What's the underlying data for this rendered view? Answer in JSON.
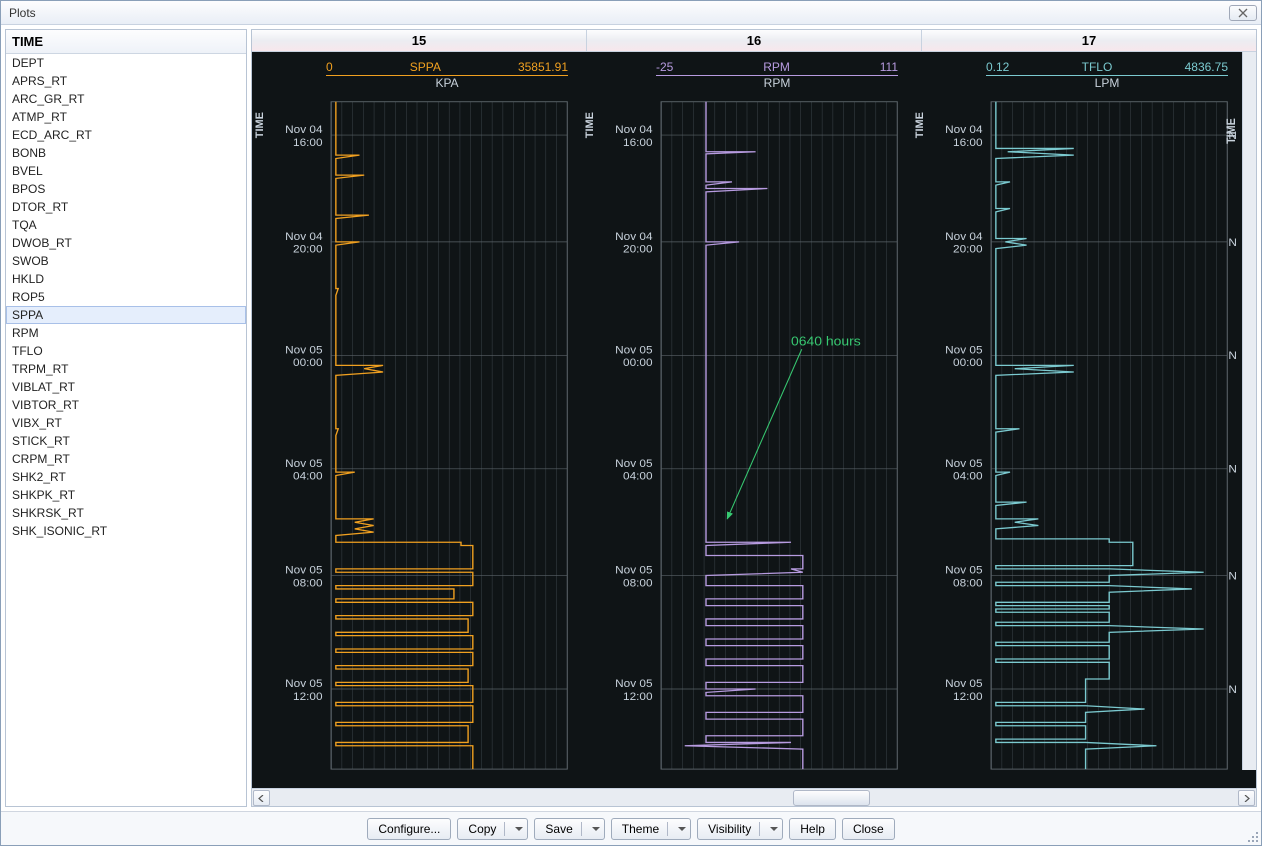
{
  "window": {
    "title": "Plots"
  },
  "sidebar": {
    "header": "TIME",
    "selected": "SPPA",
    "items": [
      "DEPT",
      "APRS_RT",
      "ARC_GR_RT",
      "ATMP_RT",
      "ECD_ARC_RT",
      "BONB",
      "BVEL",
      "BPOS",
      "DTOR_RT",
      "TQA",
      "DWOB_RT",
      "SWOB",
      "HKLD",
      "ROP5",
      "SPPA",
      "RPM",
      "TFLO",
      "TRPM_RT",
      "VIBLAT_RT",
      "VIBTOR_RT",
      "VIBX_RT",
      "STICK_RT",
      "CRPM_RT",
      "SHK2_RT",
      "SHKPK_RT",
      "SHKRSK_RT",
      "SHK_ISONIC_RT"
    ]
  },
  "columns": [
    "15",
    "16",
    "17"
  ],
  "timeAxis": {
    "label": "TIME",
    "ticks": [
      {
        "t": 0.05,
        "l1": "Nov 04",
        "l2": "16:00"
      },
      {
        "t": 0.21,
        "l1": "Nov 04",
        "l2": "20:00"
      },
      {
        "t": 0.38,
        "l1": "Nov 05",
        "l2": "00:00"
      },
      {
        "t": 0.55,
        "l1": "Nov 05",
        "l2": "04:00"
      },
      {
        "t": 0.71,
        "l1": "Nov 05",
        "l2": "08:00"
      },
      {
        "t": 0.88,
        "l1": "Nov 05",
        "l2": "12:00"
      }
    ]
  },
  "rightTicks": [
    {
      "t": 0.05,
      "txt": "N"
    },
    {
      "t": 0.21,
      "txt": "N"
    },
    {
      "t": 0.38,
      "txt": "N"
    },
    {
      "t": 0.55,
      "txt": "N"
    },
    {
      "t": 0.71,
      "txt": "N"
    },
    {
      "t": 0.88,
      "txt": "N"
    }
  ],
  "tracks": [
    {
      "name": "SPPA",
      "unit": "KPA",
      "min": "0",
      "max": "35851.91",
      "color": "#f0a020",
      "grid_color": "#3a4248",
      "data": [
        [
          0.0,
          0.02
        ],
        [
          0.08,
          0.02
        ],
        [
          0.08,
          0.12
        ],
        [
          0.085,
          0.02
        ],
        [
          0.11,
          0.02
        ],
        [
          0.11,
          0.14
        ],
        [
          0.115,
          0.02
        ],
        [
          0.17,
          0.02
        ],
        [
          0.17,
          0.16
        ],
        [
          0.175,
          0.02
        ],
        [
          0.21,
          0.02
        ],
        [
          0.21,
          0.12
        ],
        [
          0.215,
          0.02
        ],
        [
          0.28,
          0.02
        ],
        [
          0.28,
          0.03
        ],
        [
          0.29,
          0.02
        ],
        [
          0.395,
          0.02
        ],
        [
          0.395,
          0.22
        ],
        [
          0.4,
          0.14
        ],
        [
          0.405,
          0.22
        ],
        [
          0.41,
          0.02
        ],
        [
          0.49,
          0.02
        ],
        [
          0.49,
          0.03
        ],
        [
          0.5,
          0.02
        ],
        [
          0.555,
          0.02
        ],
        [
          0.555,
          0.1
        ],
        [
          0.56,
          0.02
        ],
        [
          0.625,
          0.02
        ],
        [
          0.625,
          0.18
        ],
        [
          0.63,
          0.1
        ],
        [
          0.635,
          0.18
        ],
        [
          0.64,
          0.1
        ],
        [
          0.645,
          0.18
        ],
        [
          0.65,
          0.02
        ],
        [
          0.66,
          0.02
        ],
        [
          0.66,
          0.55
        ],
        [
          0.665,
          0.55
        ],
        [
          0.665,
          0.6
        ],
        [
          0.7,
          0.6
        ],
        [
          0.7,
          0.02
        ],
        [
          0.705,
          0.02
        ],
        [
          0.705,
          0.6
        ],
        [
          0.725,
          0.6
        ],
        [
          0.725,
          0.02
        ],
        [
          0.73,
          0.02
        ],
        [
          0.73,
          0.52
        ],
        [
          0.745,
          0.52
        ],
        [
          0.745,
          0.02
        ],
        [
          0.75,
          0.02
        ],
        [
          0.75,
          0.6
        ],
        [
          0.77,
          0.6
        ],
        [
          0.77,
          0.02
        ],
        [
          0.775,
          0.02
        ],
        [
          0.775,
          0.58
        ],
        [
          0.795,
          0.58
        ],
        [
          0.795,
          0.02
        ],
        [
          0.8,
          0.02
        ],
        [
          0.8,
          0.6
        ],
        [
          0.82,
          0.6
        ],
        [
          0.82,
          0.02
        ],
        [
          0.825,
          0.02
        ],
        [
          0.825,
          0.6
        ],
        [
          0.845,
          0.6
        ],
        [
          0.845,
          0.02
        ],
        [
          0.85,
          0.02
        ],
        [
          0.85,
          0.58
        ],
        [
          0.87,
          0.58
        ],
        [
          0.87,
          0.02
        ],
        [
          0.875,
          0.02
        ],
        [
          0.875,
          0.6
        ],
        [
          0.9,
          0.6
        ],
        [
          0.9,
          0.02
        ],
        [
          0.905,
          0.02
        ],
        [
          0.905,
          0.6
        ],
        [
          0.93,
          0.6
        ],
        [
          0.93,
          0.02
        ],
        [
          0.935,
          0.02
        ],
        [
          0.935,
          0.58
        ],
        [
          0.96,
          0.58
        ],
        [
          0.96,
          0.02
        ],
        [
          0.965,
          0.02
        ],
        [
          0.965,
          0.6
        ],
        [
          1.0,
          0.6
        ]
      ]
    },
    {
      "name": "RPM",
      "unit": "RPM",
      "min": "-25",
      "max": "111",
      "color": "#b79be0",
      "grid_color": "#3a4248",
      "annotation": {
        "text": "0640 hours",
        "tx": 0.55,
        "ty": 0.365,
        "ax": 0.28,
        "ay": 0.625
      },
      "data": [
        [
          0.0,
          0.19
        ],
        [
          0.075,
          0.19
        ],
        [
          0.075,
          0.4
        ],
        [
          0.078,
          0.19
        ],
        [
          0.12,
          0.19
        ],
        [
          0.12,
          0.3
        ],
        [
          0.125,
          0.19
        ],
        [
          0.13,
          0.19
        ],
        [
          0.13,
          0.45
        ],
        [
          0.135,
          0.19
        ],
        [
          0.21,
          0.19
        ],
        [
          0.21,
          0.33
        ],
        [
          0.215,
          0.19
        ],
        [
          0.66,
          0.19
        ],
        [
          0.66,
          0.55
        ],
        [
          0.665,
          0.19
        ],
        [
          0.68,
          0.19
        ],
        [
          0.68,
          0.6
        ],
        [
          0.7,
          0.6
        ],
        [
          0.7,
          0.55
        ],
        [
          0.705,
          0.6
        ],
        [
          0.71,
          0.19
        ],
        [
          0.725,
          0.19
        ],
        [
          0.725,
          0.6
        ],
        [
          0.745,
          0.6
        ],
        [
          0.745,
          0.19
        ],
        [
          0.755,
          0.19
        ],
        [
          0.755,
          0.6
        ],
        [
          0.775,
          0.6
        ],
        [
          0.775,
          0.19
        ],
        [
          0.785,
          0.19
        ],
        [
          0.785,
          0.6
        ],
        [
          0.805,
          0.6
        ],
        [
          0.805,
          0.19
        ],
        [
          0.815,
          0.19
        ],
        [
          0.815,
          0.6
        ],
        [
          0.835,
          0.6
        ],
        [
          0.835,
          0.19
        ],
        [
          0.845,
          0.19
        ],
        [
          0.845,
          0.6
        ],
        [
          0.87,
          0.6
        ],
        [
          0.87,
          0.19
        ],
        [
          0.88,
          0.19
        ],
        [
          0.88,
          0.4
        ],
        [
          0.885,
          0.19
        ],
        [
          0.89,
          0.19
        ],
        [
          0.89,
          0.6
        ],
        [
          0.915,
          0.6
        ],
        [
          0.915,
          0.19
        ],
        [
          0.925,
          0.19
        ],
        [
          0.925,
          0.6
        ],
        [
          0.95,
          0.6
        ],
        [
          0.95,
          0.19
        ],
        [
          0.96,
          0.19
        ],
        [
          0.96,
          0.55
        ],
        [
          0.965,
          0.1
        ],
        [
          0.97,
          0.6
        ],
        [
          1.0,
          0.6
        ]
      ]
    },
    {
      "name": "TFLO",
      "unit": "LPM",
      "min": "0.12",
      "max": "4836.75",
      "color": "#7bcad0",
      "grid_color": "#3a4248",
      "data": [
        [
          0.0,
          0.02
        ],
        [
          0.07,
          0.02
        ],
        [
          0.07,
          0.35
        ],
        [
          0.075,
          0.07
        ],
        [
          0.08,
          0.35
        ],
        [
          0.085,
          0.02
        ],
        [
          0.12,
          0.02
        ],
        [
          0.12,
          0.08
        ],
        [
          0.125,
          0.02
        ],
        [
          0.16,
          0.02
        ],
        [
          0.16,
          0.08
        ],
        [
          0.165,
          0.02
        ],
        [
          0.205,
          0.02
        ],
        [
          0.205,
          0.15
        ],
        [
          0.21,
          0.06
        ],
        [
          0.215,
          0.15
        ],
        [
          0.22,
          0.02
        ],
        [
          0.395,
          0.02
        ],
        [
          0.395,
          0.35
        ],
        [
          0.4,
          0.1
        ],
        [
          0.405,
          0.35
        ],
        [
          0.41,
          0.02
        ],
        [
          0.49,
          0.02
        ],
        [
          0.49,
          0.12
        ],
        [
          0.495,
          0.02
        ],
        [
          0.555,
          0.02
        ],
        [
          0.555,
          0.08
        ],
        [
          0.56,
          0.02
        ],
        [
          0.6,
          0.02
        ],
        [
          0.6,
          0.15
        ],
        [
          0.605,
          0.02
        ],
        [
          0.625,
          0.02
        ],
        [
          0.625,
          0.2
        ],
        [
          0.63,
          0.1
        ],
        [
          0.635,
          0.2
        ],
        [
          0.64,
          0.02
        ],
        [
          0.655,
          0.02
        ],
        [
          0.655,
          0.5
        ],
        [
          0.66,
          0.5
        ],
        [
          0.66,
          0.6
        ],
        [
          0.695,
          0.6
        ],
        [
          0.695,
          0.02
        ],
        [
          0.7,
          0.02
        ],
        [
          0.7,
          0.5
        ],
        [
          0.705,
          0.9
        ],
        [
          0.71,
          0.5
        ],
        [
          0.72,
          0.5
        ],
        [
          0.72,
          0.02
        ],
        [
          0.725,
          0.02
        ],
        [
          0.725,
          0.5
        ],
        [
          0.73,
          0.85
        ],
        [
          0.735,
          0.5
        ],
        [
          0.75,
          0.5
        ],
        [
          0.75,
          0.02
        ],
        [
          0.755,
          0.02
        ],
        [
          0.755,
          0.5
        ],
        [
          0.76,
          0.5
        ],
        [
          0.76,
          0.02
        ],
        [
          0.765,
          0.02
        ],
        [
          0.765,
          0.5
        ],
        [
          0.78,
          0.5
        ],
        [
          0.78,
          0.02
        ],
        [
          0.785,
          0.02
        ],
        [
          0.785,
          0.5
        ],
        [
          0.79,
          0.9
        ],
        [
          0.795,
          0.5
        ],
        [
          0.81,
          0.5
        ],
        [
          0.81,
          0.02
        ],
        [
          0.815,
          0.02
        ],
        [
          0.815,
          0.5
        ],
        [
          0.835,
          0.5
        ],
        [
          0.835,
          0.02
        ],
        [
          0.84,
          0.02
        ],
        [
          0.84,
          0.5
        ],
        [
          0.865,
          0.5
        ],
        [
          0.865,
          0.4
        ],
        [
          0.9,
          0.4
        ],
        [
          0.9,
          0.02
        ],
        [
          0.905,
          0.02
        ],
        [
          0.905,
          0.4
        ],
        [
          0.91,
          0.65
        ],
        [
          0.915,
          0.4
        ],
        [
          0.93,
          0.4
        ],
        [
          0.93,
          0.02
        ],
        [
          0.935,
          0.02
        ],
        [
          0.935,
          0.4
        ],
        [
          0.955,
          0.4
        ],
        [
          0.955,
          0.02
        ],
        [
          0.96,
          0.02
        ],
        [
          0.96,
          0.4
        ],
        [
          0.965,
          0.7
        ],
        [
          0.97,
          0.4
        ],
        [
          1.0,
          0.4
        ]
      ]
    }
  ],
  "hscroll": {
    "thumb_left": 0.54,
    "thumb_width": 0.08
  },
  "footer": {
    "configure": "Configure...",
    "copy": "Copy",
    "save": "Save",
    "theme": "Theme",
    "visibility": "Visibility",
    "help": "Help",
    "close": "Close"
  },
  "colors": {
    "plot_bg": "#0f1416",
    "axis_text": "#c8d2dc",
    "grid": "#3a4248",
    "grid_major": "#5a6268"
  }
}
